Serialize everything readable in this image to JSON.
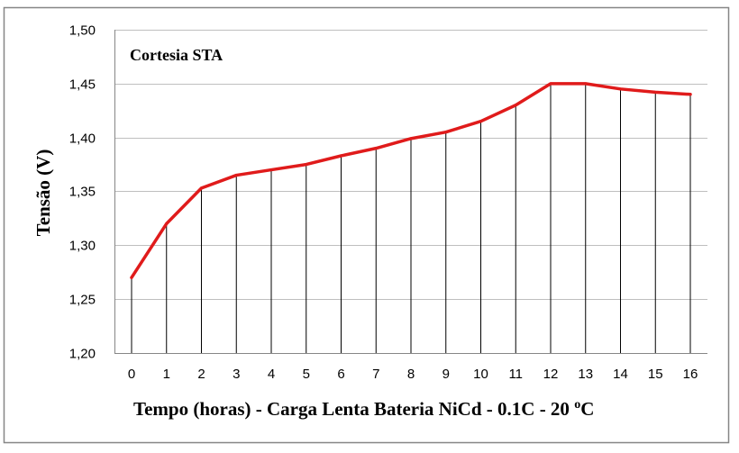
{
  "chart_data": {
    "type": "line",
    "title": "",
    "annotation": "Cortesia STA",
    "xlabel_main": "Tempo (horas) - Carga Lenta Bateria NiCd  - 0.1C - 20 ",
    "xlabel_sup": "o",
    "xlabel_tail": "C",
    "ylabel": "Tensão (V)",
    "x": [
      0,
      1,
      2,
      3,
      4,
      5,
      6,
      7,
      8,
      9,
      10,
      11,
      12,
      13,
      14,
      15,
      16
    ],
    "x_tick_labels": [
      "0",
      "1",
      "2",
      "3",
      "4",
      "5",
      "6",
      "7",
      "8",
      "9",
      "10",
      "11",
      "12",
      "13",
      "14",
      "15",
      "16"
    ],
    "y_tick_values": [
      1.2,
      1.25,
      1.3,
      1.35,
      1.4,
      1.45,
      1.5
    ],
    "y_tick_labels": [
      "1,20",
      "1,25",
      "1,30",
      "1,35",
      "1,40",
      "1,45",
      "1,50"
    ],
    "ylim": [
      1.2,
      1.5
    ],
    "xlim": [
      0,
      16
    ],
    "grid": "horizontal",
    "drop_lines": true,
    "legend": "none",
    "series": [
      {
        "values": [
          1.27,
          1.32,
          1.353,
          1.365,
          1.37,
          1.375,
          1.383,
          1.39,
          1.399,
          1.405,
          1.415,
          1.43,
          1.45,
          1.45,
          1.445,
          1.442,
          1.44
        ],
        "color": "#e01b1b"
      }
    ],
    "colors": {
      "line": "#e01b1b",
      "grid": "#bfbfbf",
      "drop": "#000000",
      "axis": "#868686",
      "frame": "#868686"
    }
  }
}
